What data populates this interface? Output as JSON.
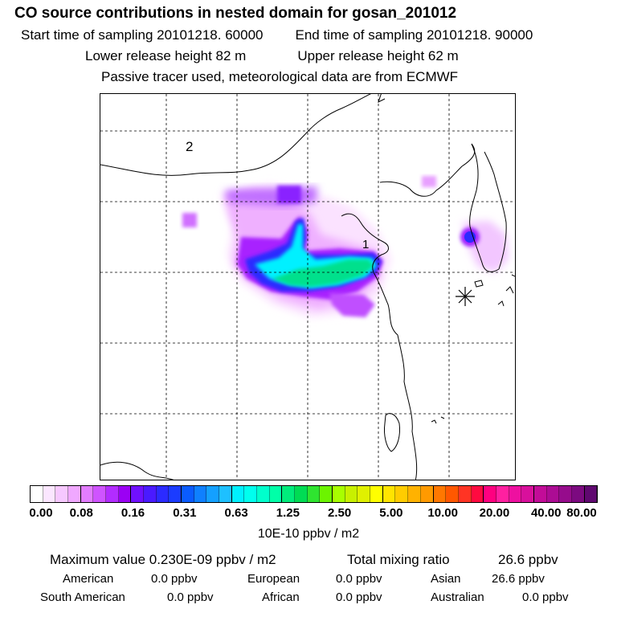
{
  "header": {
    "title": "CO  source contributions in nested domain for gosan_201012",
    "start_label": "Start time of sampling 20101218. 60000",
    "end_label": "End time of sampling 20101218. 90000",
    "lower_label": "Lower release height   82 m",
    "upper_label": "Upper release height   62 m",
    "note": "Passive tracer used, meteorological data are from ECMWF"
  },
  "map": {
    "region_label_2": "2",
    "region_label_1": "1",
    "receptor_marker": "star-marker"
  },
  "colorbar": {
    "ticks": [
      "0.00",
      "0.08",
      "0.16",
      "0.31",
      "0.63",
      "1.25",
      "2.50",
      "5.00",
      "10.00",
      "20.00",
      "40.00",
      "80.00"
    ],
    "unit": "10E-10 ppbv / m2",
    "colors": [
      "#ffffff",
      "#fbe6ff",
      "#f6c8ff",
      "#f0a8ff",
      "#e27dff",
      "#cf54ff",
      "#b22cff",
      "#9b00f4",
      "#7010ff",
      "#4a1aff",
      "#2b2bff",
      "#1b3cff",
      "#0a5cff",
      "#0f80ff",
      "#14a0ff",
      "#1ec0ff",
      "#00f0ff",
      "#00ffee",
      "#00ffcc",
      "#00ffa8",
      "#00ec7c",
      "#00dc54",
      "#2fe430",
      "#6cf400",
      "#a8ff00",
      "#c8f000",
      "#e0f000",
      "#ffff00",
      "#ffe400",
      "#ffcc00",
      "#ffb200",
      "#ff9a00",
      "#ff7800",
      "#ff5800",
      "#ff3424",
      "#ff0a40",
      "#ff0080",
      "#ff20a0",
      "#ee10a0",
      "#d8109c",
      "#c20c98",
      "#ac0c94",
      "#960c8c",
      "#7c0a80",
      "#600870"
    ]
  },
  "stats": {
    "max_label": "Maximum value  0.230E-09 ppbv / m2",
    "total_label": "Total mixing ratio",
    "total_value": "26.6 ppbv",
    "american_label": "American",
    "american_value": "0.0 ppbv",
    "european_label": "European",
    "european_value": "0.0 ppbv",
    "asian_label": "Asian",
    "asian_value": "26.6 ppbv",
    "southam_label": "South American",
    "southam_value": "0.0 ppbv",
    "african_label": "African",
    "african_value": "0.0 ppbv",
    "australian_label": "Australian",
    "australian_value": "0.0 ppbv"
  }
}
